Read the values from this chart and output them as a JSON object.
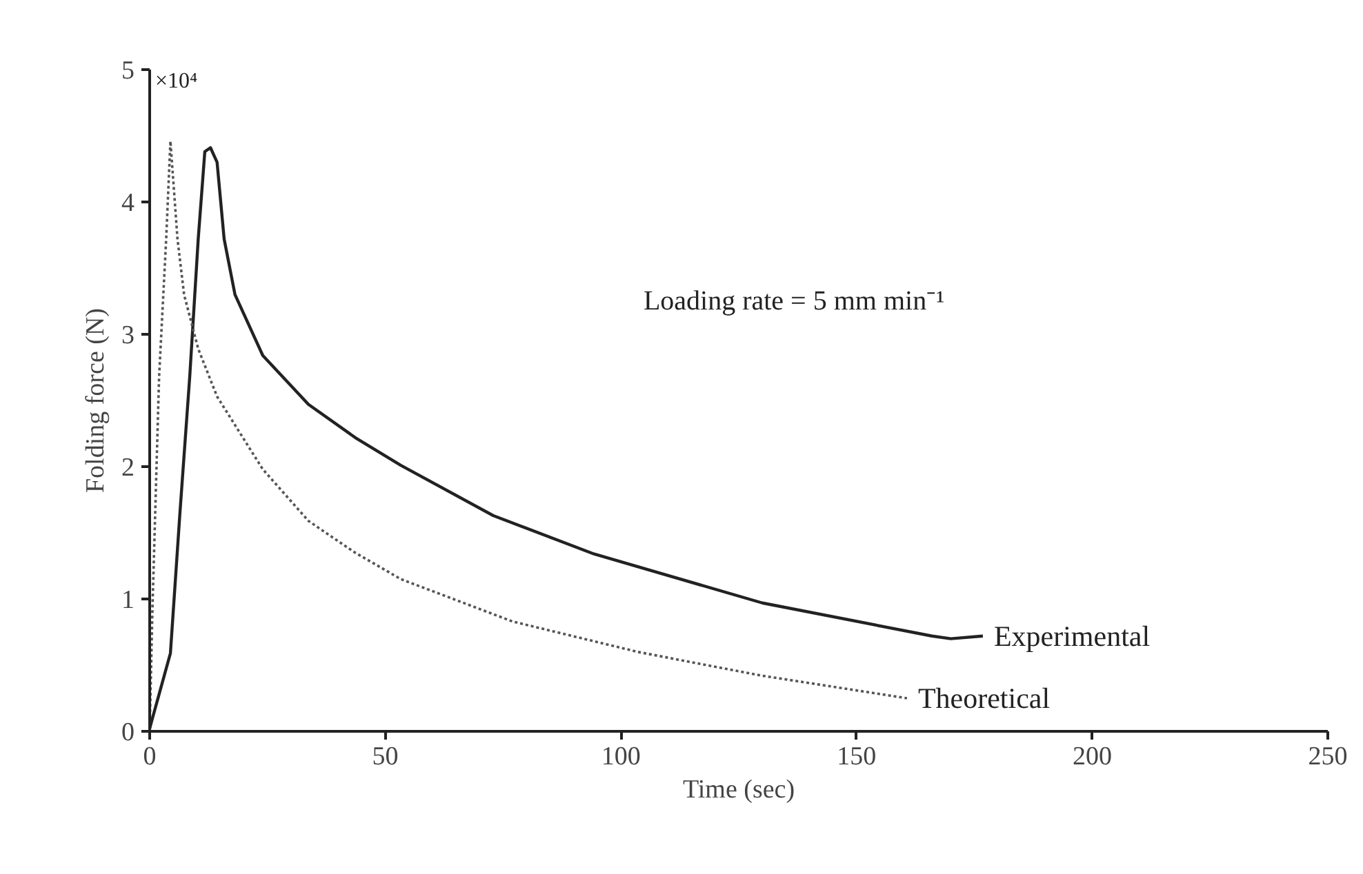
{
  "chart_data": {
    "type": "line",
    "xlabel": "Time (sec)",
    "ylabel": "Folding force (N)",
    "xlim": [
      0,
      250
    ],
    "ylim": [
      0,
      5
    ],
    "xticks": [
      0,
      50,
      100,
      150,
      200,
      250
    ],
    "yticks": [
      0,
      1,
      2,
      3,
      4,
      5
    ],
    "grid": false,
    "marker": "none",
    "annotations": [
      "×10⁴",
      "Loading rate = 5 mm min⁻¹"
    ],
    "series": [
      {
        "name": "Experimental",
        "color": "#222222",
        "line_style": "solid",
        "x": [
          0,
          0.6,
          4.4,
          6.4,
          8.5,
          10.3,
          11.7,
          12.9,
          14.3,
          15.8,
          18.1,
          24,
          33.7,
          43.6,
          53.3,
          72.9,
          94.3,
          130,
          166,
          170,
          176.8
        ],
        "values": [
          0.02,
          0.1,
          0.59,
          1.64,
          2.68,
          3.72,
          4.38,
          4.41,
          4.3,
          3.72,
          3.3,
          2.84,
          2.47,
          2.22,
          2.01,
          1.63,
          1.34,
          0.97,
          0.72,
          0.7,
          0.72
        ]
      },
      {
        "name": "Theoretical",
        "color": "#555555",
        "line_style": "dotted",
        "x": [
          0,
          0.6,
          2,
          3.5,
          4.4,
          5.9,
          7.3,
          10.3,
          14.3,
          24,
          33.7,
          43.6,
          53.3,
          77,
          103.6,
          130,
          160.7
        ],
        "values": [
          0.02,
          0.94,
          2.68,
          3.72,
          4.46,
          3.72,
          3.3,
          2.89,
          2.53,
          1.98,
          1.59,
          1.35,
          1.15,
          0.83,
          0.6,
          0.42,
          0.25
        ]
      }
    ]
  }
}
